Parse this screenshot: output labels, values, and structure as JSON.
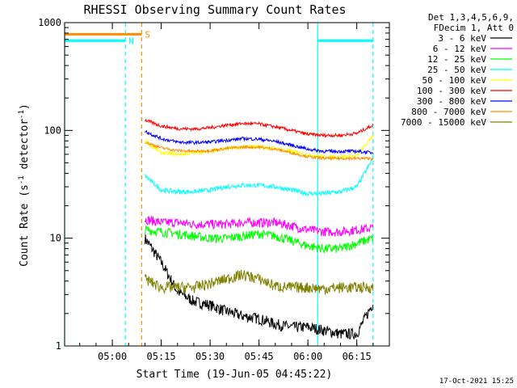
{
  "chart_data": {
    "type": "line",
    "title": "RHESSI Observing Summary Count Rates",
    "xlabel": "Start Time (19-Jun-05 04:45:22)",
    "ylabel": "Count Rate (s⁻¹ detector⁻¹)",
    "ylabel_base": "Count Rate (s",
    "ylabel_sup1": "-1",
    "ylabel_mid": " detector",
    "ylabel_sup2": "-1",
    "ylabel_end": ")",
    "y_scale": "log",
    "ylim": [
      1,
      1000
    ],
    "xlim": [
      "04:45:22",
      "06:25:00"
    ],
    "x_ticks": [
      "05:00",
      "05:15",
      "05:30",
      "05:45",
      "06:00",
      "06:15"
    ],
    "y_ticks": [
      "1",
      "10",
      "100",
      "1000"
    ],
    "grid": false,
    "legend_placement": "right",
    "legend_header": [
      "Det 1,3,4,5,6,9,",
      "FDecim 1, Att 0"
    ],
    "timestamp": "17-Oct-2021 15:25",
    "x": [
      "05:10",
      "05:15",
      "05:20",
      "05:25",
      "05:30",
      "05:35",
      "05:40",
      "05:45",
      "05:50",
      "05:55",
      "06:00",
      "06:05",
      "06:10",
      "06:15",
      "06:20"
    ],
    "series": [
      {
        "name": "3 - 6 keV",
        "color": "#000000",
        "values": [
          10,
          6,
          3.2,
          2.6,
          2.4,
          2.1,
          1.9,
          1.8,
          1.6,
          1.5,
          1.5,
          1.4,
          1.3,
          1.3,
          2.5
        ]
      },
      {
        "name": "6 - 12 keV",
        "color": "#ff00ff",
        "values": [
          15,
          14,
          14,
          13.5,
          13.5,
          13.5,
          14,
          14,
          14,
          13,
          12,
          11.5,
          11.5,
          12,
          12.5
        ]
      },
      {
        "name": "12 - 25 keV",
        "color": "#00ff00",
        "values": [
          12,
          11.5,
          11,
          10.5,
          10,
          10,
          10.5,
          11,
          10.5,
          9.5,
          8.5,
          8,
          8,
          9,
          10
        ]
      },
      {
        "name": "25 - 50 keV",
        "color": "#00ffff",
        "values": [
          38,
          28,
          27,
          27,
          28,
          30,
          31,
          31,
          30,
          28,
          26,
          26,
          27,
          30,
          55
        ]
      },
      {
        "name": "50 - 100 keV",
        "color": "#ffff00",
        "values": [
          80,
          62,
          60,
          62,
          64,
          68,
          70,
          71,
          68,
          64,
          59,
          57,
          57,
          58,
          90
        ]
      },
      {
        "name": "100 - 300 keV",
        "color": "#ff0000",
        "values": [
          125,
          110,
          104,
          103,
          106,
          112,
          116,
          115,
          108,
          100,
          92,
          90,
          90,
          94,
          112
        ]
      },
      {
        "name": "300 - 800 keV",
        "color": "#0000ff",
        "values": [
          98,
          84,
          78,
          77,
          78,
          81,
          84,
          83,
          79,
          73,
          67,
          64,
          64,
          64,
          62
        ]
      },
      {
        "name": "800 - 7000 keV",
        "color": "#ff8c00",
        "values": [
          78,
          69,
          65,
          64,
          65,
          68,
          70,
          70,
          67,
          62,
          57,
          55,
          55,
          55,
          55
        ]
      },
      {
        "name": "7000 - 15000 keV",
        "color": "#808000",
        "values": [
          4.2,
          3.5,
          3.5,
          3.5,
          3.8,
          4.2,
          4.6,
          4.2,
          3.6,
          3.5,
          3.5,
          3.4,
          3.5,
          3.5,
          3.5
        ]
      }
    ],
    "annotations": [
      {
        "label": "N",
        "color": "#00ffff",
        "x_start": "04:45:22",
        "x_end": "05:04",
        "level": 680
      },
      {
        "label": "S",
        "color": "#ff8c00",
        "x_start": "04:45:22",
        "x_end": "05:09",
        "level": 780
      },
      {
        "label": "",
        "color": "#00ffff",
        "x_start": "06:03",
        "x_end": "06:20",
        "level": 680
      }
    ],
    "vertical_markers": [
      {
        "x": "04:45:22",
        "color": "#00ffff",
        "style": "solid"
      },
      {
        "x": "05:04",
        "color": "#00ffff",
        "style": "dashed"
      },
      {
        "x": "05:09",
        "color": "#ff8c00",
        "style": "dashed"
      },
      {
        "x": "06:03",
        "color": "#00ffff",
        "style": "solid"
      },
      {
        "x": "06:20",
        "color": "#00ffff",
        "style": "dashed"
      }
    ]
  }
}
